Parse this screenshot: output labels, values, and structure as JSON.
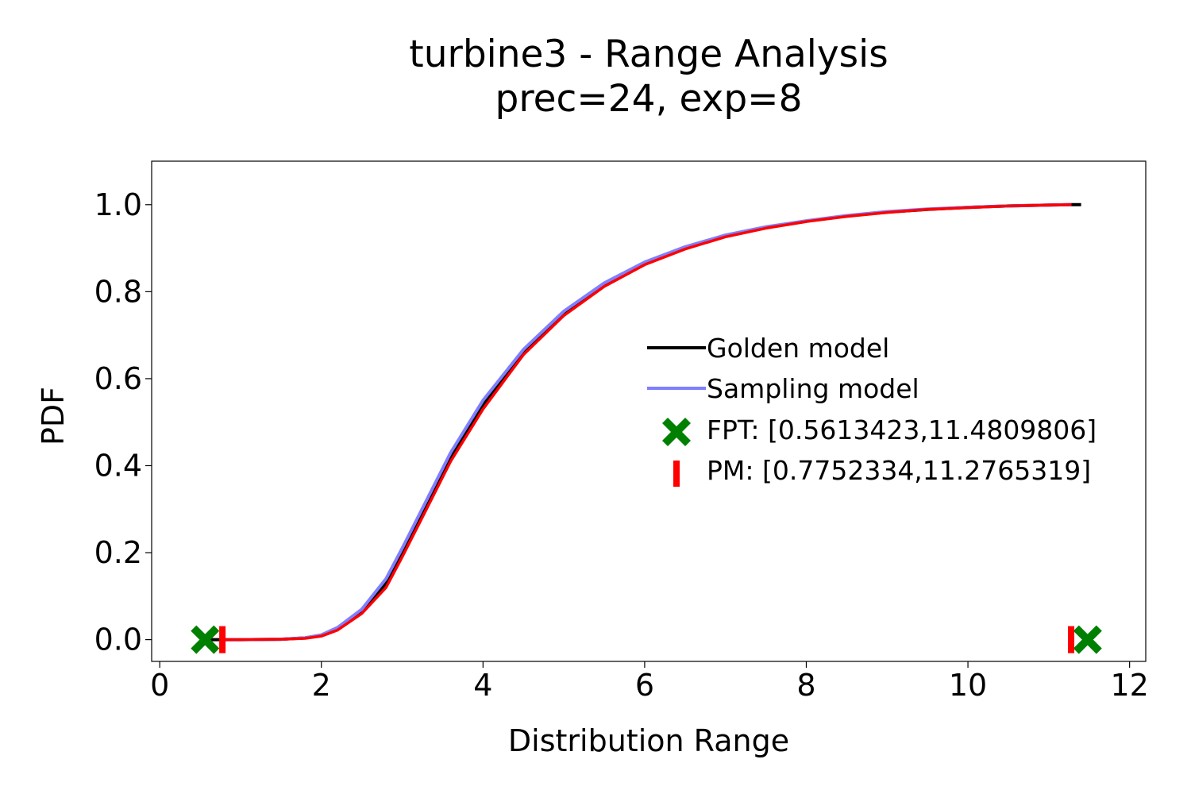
{
  "chart_data": {
    "type": "line",
    "title": "turbine3 - Range Analysis",
    "subtitle": "prec=24, exp=8",
    "xlabel": "Distribution Range",
    "ylabel": "PDF",
    "xlim": [
      -0.1,
      12.2
    ],
    "ylim": [
      -0.05,
      1.1
    ],
    "xticks": [
      0,
      2,
      4,
      6,
      8,
      10,
      12
    ],
    "xtick_labels": [
      "0",
      "2",
      "4",
      "6",
      "8",
      "10",
      "12"
    ],
    "yticks": [
      0.0,
      0.2,
      0.4,
      0.6,
      0.8,
      1.0
    ],
    "ytick_labels": [
      "0.0",
      "0.2",
      "0.4",
      "0.6",
      "0.8",
      "1.0"
    ],
    "grid": false,
    "legend_position": "center-right",
    "series": [
      {
        "name": "Golden model",
        "color": "#000000",
        "x": [
          0.6,
          1.0,
          1.5,
          1.8,
          2.0,
          2.2,
          2.5,
          2.8,
          3.0,
          3.3,
          3.6,
          4.0,
          4.5,
          5.0,
          5.5,
          6.0,
          6.5,
          7.0,
          7.5,
          8.0,
          8.5,
          9.0,
          9.5,
          10.0,
          10.5,
          11.0,
          11.28,
          11.4
        ],
        "y": [
          0.0,
          0.0,
          0.001,
          0.004,
          0.01,
          0.025,
          0.065,
          0.13,
          0.2,
          0.31,
          0.42,
          0.54,
          0.66,
          0.75,
          0.815,
          0.865,
          0.9,
          0.927,
          0.947,
          0.962,
          0.974,
          0.983,
          0.989,
          0.994,
          0.997,
          0.999,
          1.0,
          1.0
        ]
      },
      {
        "name": "Sampling model",
        "color": "#7f7fff",
        "x": [
          0.78,
          1.0,
          1.5,
          1.8,
          2.0,
          2.2,
          2.5,
          2.8,
          3.0,
          3.3,
          3.6,
          4.0,
          4.5,
          5.0,
          5.5,
          6.0,
          6.5,
          7.0,
          7.5,
          8.0,
          8.5,
          9.0,
          9.5,
          10.0,
          10.5,
          11.0,
          11.28
        ],
        "y": [
          0.0,
          0.0,
          0.001,
          0.004,
          0.011,
          0.028,
          0.07,
          0.14,
          0.21,
          0.32,
          0.43,
          0.55,
          0.667,
          0.755,
          0.82,
          0.868,
          0.903,
          0.93,
          0.949,
          0.963,
          0.975,
          0.984,
          0.99,
          0.994,
          0.997,
          0.999,
          1.0
        ]
      },
      {
        "name": "PM",
        "color": "#ff0000",
        "x": [
          0.78,
          1.0,
          1.5,
          1.8,
          2.0,
          2.2,
          2.5,
          2.8,
          3.0,
          3.3,
          3.6,
          4.0,
          4.5,
          5.0,
          5.5,
          6.0,
          6.5,
          7.0,
          7.5,
          8.0,
          8.5,
          9.0,
          9.5,
          10.0,
          10.5,
          11.0,
          11.28
        ],
        "y": [
          0.0,
          0.0,
          0.001,
          0.003,
          0.008,
          0.022,
          0.06,
          0.12,
          0.19,
          0.3,
          0.41,
          0.53,
          0.655,
          0.745,
          0.812,
          0.862,
          0.898,
          0.926,
          0.946,
          0.961,
          0.973,
          0.982,
          0.989,
          0.993,
          0.997,
          0.999,
          1.0
        ]
      }
    ],
    "markers": [
      {
        "name": "FPT: [0.5613423,11.4809806]",
        "shape": "x",
        "color": "#008000",
        "points": [
          [
            0.5613423,
            0.0
          ],
          [
            11.4809806,
            0.0
          ]
        ]
      },
      {
        "name": "PM: [0.7752334,11.2765319]",
        "shape": "vline",
        "color": "#ff0000",
        "points": [
          [
            0.7752334,
            0.0
          ],
          [
            11.2765319,
            0.0
          ]
        ]
      }
    ],
    "legend": [
      {
        "label": "Golden model",
        "kind": "line",
        "color": "#000000"
      },
      {
        "label": "Sampling model",
        "kind": "line",
        "color": "#7f7fff"
      },
      {
        "label": "FPT: [0.5613423,11.4809806]",
        "kind": "x",
        "color": "#008000"
      },
      {
        "label": "PM: [0.7752334,11.2765319]",
        "kind": "vline",
        "color": "#ff0000"
      }
    ]
  }
}
